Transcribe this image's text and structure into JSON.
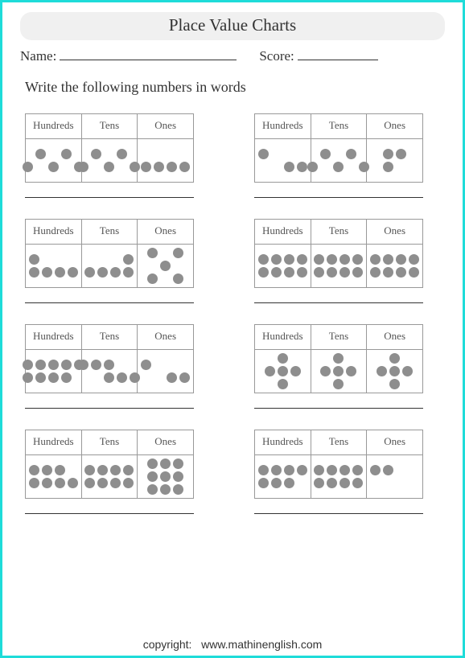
{
  "title": "Place Value Charts",
  "labels": {
    "name": "Name:",
    "score": "Score:",
    "instruction": "Write the following numbers in words",
    "copyright": "copyright:",
    "site": "www.mathinenglish.com"
  },
  "headers": {
    "h": "Hundreds",
    "t": "Tens",
    "o": "Ones"
  },
  "colors": {
    "border": "#1edcd9",
    "dot": "#8e8e8e",
    "cell_border": "#999999",
    "title_bg": "#f0f0f0"
  },
  "problems": [
    {
      "hundreds": {
        "count": 5,
        "rows": [
          [
            0,
            1,
            0,
            1,
            0
          ],
          [
            1,
            0,
            1,
            0,
            1
          ]
        ]
      },
      "tens": {
        "count": 5,
        "rows": [
          [
            0,
            1,
            0,
            1,
            0
          ],
          [
            1,
            0,
            1,
            0,
            1
          ]
        ]
      },
      "ones": {
        "count": 4,
        "rows": [
          [
            0,
            0,
            0,
            0
          ],
          [
            1,
            1,
            1,
            1
          ]
        ]
      }
    },
    {
      "hundreds": {
        "count": 3,
        "rows": [
          [
            1,
            0,
            0,
            0
          ],
          [
            0,
            0,
            1,
            1
          ]
        ]
      },
      "tens": {
        "count": 5,
        "rows": [
          [
            0,
            1,
            0,
            1,
            0
          ],
          [
            1,
            0,
            1,
            0,
            1
          ]
        ]
      },
      "ones": {
        "count": 3,
        "rows": [
          [
            0,
            1,
            1,
            0
          ],
          [
            0,
            1,
            0,
            0
          ]
        ]
      }
    },
    {
      "hundreds": {
        "count": 5,
        "rows": [
          [
            1,
            0,
            0,
            0
          ],
          [
            1,
            1,
            1,
            1
          ]
        ]
      },
      "tens": {
        "count": 5,
        "rows": [
          [
            0,
            0,
            0,
            1
          ],
          [
            1,
            1,
            1,
            1
          ]
        ]
      },
      "ones": {
        "count": 5,
        "rows": [
          [
            1,
            0,
            1
          ],
          [
            0,
            1,
            0
          ],
          [
            1,
            0,
            1
          ]
        ]
      }
    },
    {
      "hundreds": {
        "count": 8,
        "rows": [
          [
            1,
            1,
            1,
            1
          ],
          [
            1,
            1,
            1,
            1
          ]
        ]
      },
      "tens": {
        "count": 8,
        "rows": [
          [
            1,
            1,
            1,
            1
          ],
          [
            1,
            1,
            1,
            1
          ]
        ]
      },
      "ones": {
        "count": 8,
        "rows": [
          [
            1,
            1,
            1,
            1
          ],
          [
            1,
            1,
            1,
            1
          ]
        ]
      }
    },
    {
      "hundreds": {
        "count": 9,
        "rows": [
          [
            1,
            1,
            1,
            1,
            1
          ],
          [
            1,
            1,
            1,
            1,
            0
          ]
        ]
      },
      "tens": {
        "count": 6,
        "rows": [
          [
            1,
            1,
            1,
            0,
            0
          ],
          [
            0,
            0,
            1,
            1,
            1
          ]
        ]
      },
      "ones": {
        "count": 3,
        "rows": [
          [
            1,
            0,
            0,
            0
          ],
          [
            0,
            0,
            1,
            1
          ]
        ]
      }
    },
    {
      "hundreds": {
        "count": 5,
        "rows": [
          [
            0,
            1,
            0
          ],
          [
            1,
            1,
            1
          ],
          [
            0,
            1,
            0
          ]
        ]
      },
      "tens": {
        "count": 5,
        "rows": [
          [
            0,
            1,
            0
          ],
          [
            1,
            1,
            1
          ],
          [
            0,
            1,
            0
          ]
        ]
      },
      "ones": {
        "count": 5,
        "rows": [
          [
            0,
            1,
            0
          ],
          [
            1,
            1,
            1
          ],
          [
            0,
            1,
            0
          ]
        ]
      }
    },
    {
      "hundreds": {
        "count": 7,
        "rows": [
          [
            1,
            1,
            1,
            0
          ],
          [
            1,
            1,
            1,
            1
          ]
        ]
      },
      "tens": {
        "count": 8,
        "rows": [
          [
            1,
            1,
            1,
            1
          ],
          [
            1,
            1,
            1,
            1
          ]
        ]
      },
      "ones": {
        "count": 9,
        "rows": [
          [
            1,
            1,
            1
          ],
          [
            1,
            1,
            1
          ],
          [
            1,
            1,
            1
          ]
        ]
      }
    },
    {
      "hundreds": {
        "count": 7,
        "rows": [
          [
            1,
            1,
            1,
            1
          ],
          [
            1,
            1,
            1,
            0
          ]
        ]
      },
      "tens": {
        "count": 8,
        "rows": [
          [
            1,
            1,
            1,
            1
          ],
          [
            1,
            1,
            1,
            1
          ]
        ]
      },
      "ones": {
        "count": 2,
        "rows": [
          [
            1,
            1,
            0,
            0
          ],
          [
            0,
            0,
            0,
            0
          ]
        ]
      }
    }
  ]
}
